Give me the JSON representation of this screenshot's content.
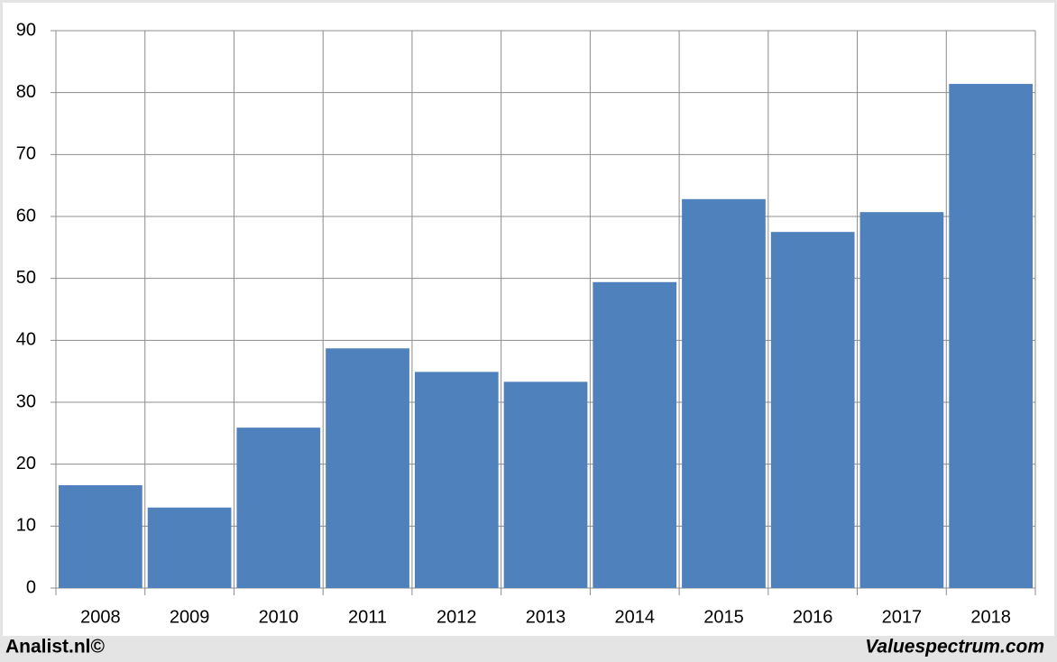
{
  "chart_data": {
    "type": "bar",
    "categories": [
      "2008",
      "2009",
      "2010",
      "2011",
      "2012",
      "2013",
      "2014",
      "2015",
      "2016",
      "2017",
      "2018"
    ],
    "values": [
      16.6,
      13.0,
      25.9,
      38.7,
      34.9,
      33.3,
      49.4,
      62.8,
      57.5,
      60.7,
      81.4
    ],
    "color": "#4f81bd",
    "ylim": [
      0,
      90
    ],
    "yticks": [
      0,
      10,
      20,
      30,
      40,
      50,
      60,
      70,
      80,
      90
    ],
    "grid": true,
    "source": "Analist.nl©",
    "credit": "Valuespectrum.com"
  }
}
